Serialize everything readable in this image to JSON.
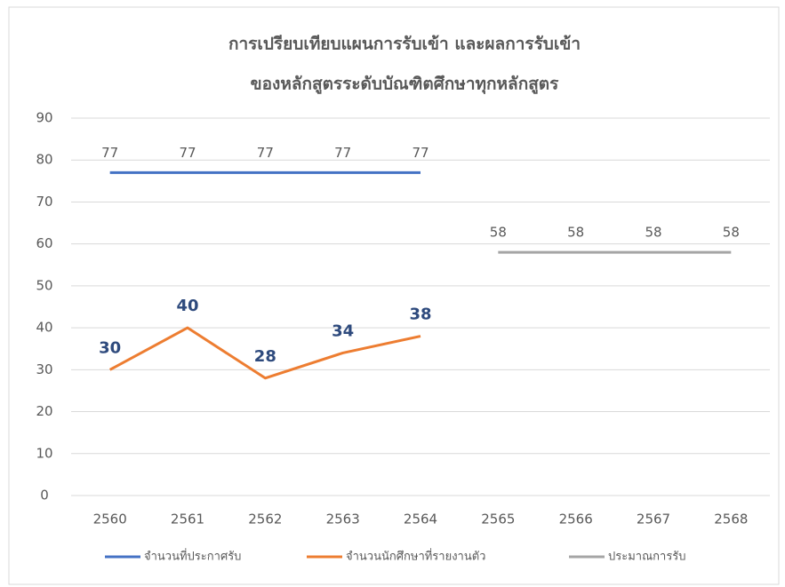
{
  "chart_data": {
    "type": "line",
    "title": [
      "การเปรียบเทียบแผนการรับเข้า และผลการรับเข้า",
      "ของหลักสูตรระดับบัณฑิตศึกษาทุกหลักสูตร"
    ],
    "categories": [
      "2560",
      "2561",
      "2562",
      "2563",
      "2564",
      "2565",
      "2566",
      "2567",
      "2568"
    ],
    "series": [
      {
        "name": "จำนวนที่ประกาศรับ",
        "color": "#4472c4",
        "label_color": "#595959",
        "values": [
          77,
          77,
          77,
          77,
          77,
          null,
          null,
          null,
          null
        ]
      },
      {
        "name": "จำนวนนักศึกษาที่รายงานตัว",
        "color": "#ed7d31",
        "label_color": "#2e4a7d",
        "values": [
          30,
          40,
          28,
          34,
          38,
          null,
          null,
          null,
          null
        ]
      },
      {
        "name": "ประมาณการรับ",
        "color": "#a5a5a5",
        "label_color": "#595959",
        "values": [
          null,
          null,
          null,
          null,
          null,
          58,
          58,
          58,
          58
        ]
      }
    ],
    "ylim": [
      0,
      90
    ],
    "yticks": [
      0,
      10,
      20,
      30,
      40,
      50,
      60,
      70,
      80,
      90
    ],
    "grid": true,
    "legend": "bottom"
  }
}
